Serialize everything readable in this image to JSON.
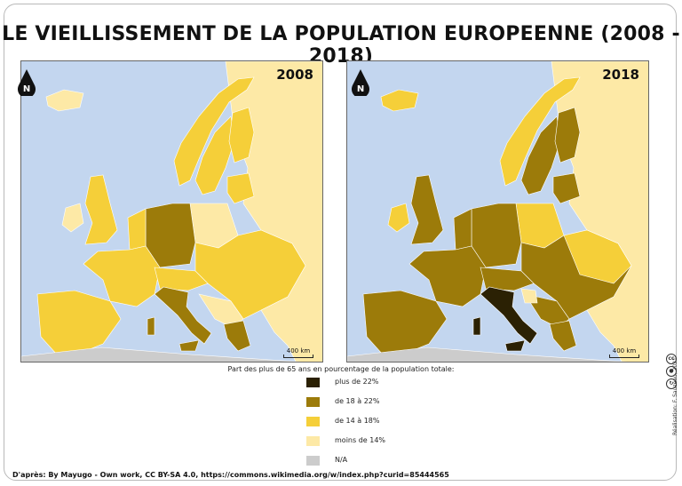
{
  "title": "LE VIEILLISSEMENT DE LA POPULATION EUROPEENNE (2008 - 2018)",
  "maps": [
    {
      "year": "2008",
      "scale_label": "400 km",
      "north_label": "N"
    },
    {
      "year": "2018",
      "scale_label": "400 km",
      "north_label": "N"
    }
  ],
  "legend": {
    "title": "Part des plus de 65 ans en pourcentage de la population totale:",
    "items": [
      {
        "label": "plus de 22%",
        "color": "#2b2104"
      },
      {
        "label": "de 18 à 22%",
        "color": "#9c7b0a"
      },
      {
        "label": "de 14 à 18%",
        "color": "#f5cf39"
      },
      {
        "label": "moins de 14%",
        "color": "#fde9a6"
      },
      {
        "label": "N/A",
        "color": "#cccccc"
      }
    ]
  },
  "colors": {
    "sea": "#c3d6ef",
    "class_4": "#2b2104",
    "class_3": "#9c7b0a",
    "class_2": "#f5cf39",
    "class_1": "#fde9a6",
    "na": "#cccccc"
  },
  "source": "D'après: By Mayugo - Own work, CC BY-SA 4.0, https://commons.wikimedia.org/w/index.php?curid=85444565",
  "credit": "Réalisation: F. Sauzeau, 2021",
  "license_icons": [
    "cc-icon",
    "by-icon",
    "sa-icon"
  ]
}
